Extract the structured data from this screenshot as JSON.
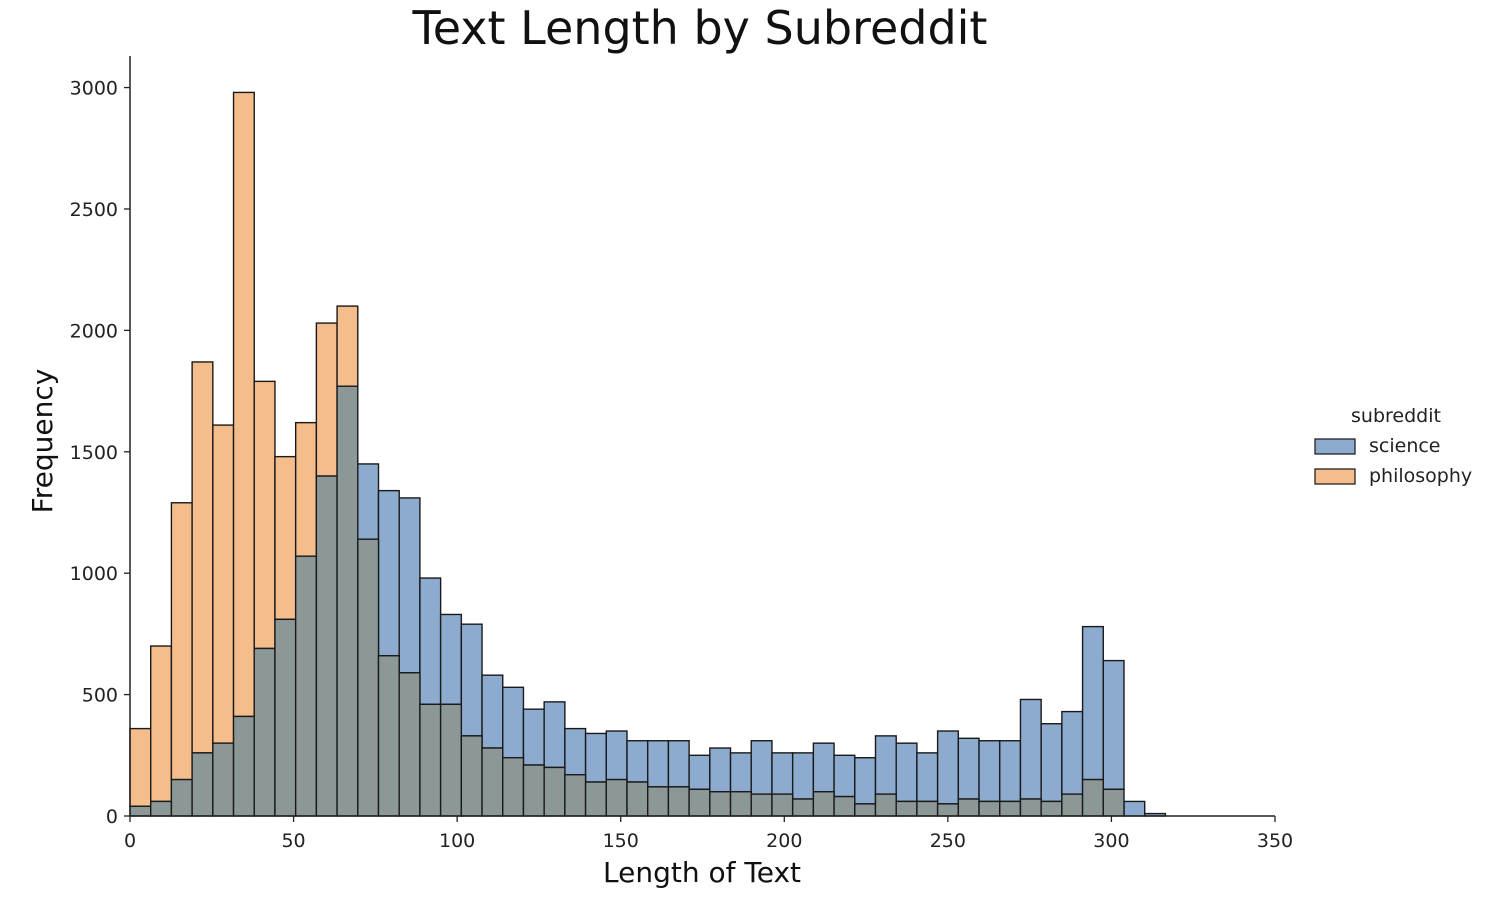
{
  "chart_data": {
    "type": "bar",
    "title": "Text Length by Subreddit",
    "xlabel": "Length of Text",
    "ylabel": "Frequency",
    "xlim": [
      0,
      350
    ],
    "ylim": [
      0,
      3130
    ],
    "xticks": [
      0,
      50,
      100,
      150,
      200,
      250,
      300,
      350
    ],
    "yticks": [
      0,
      500,
      1000,
      1500,
      2000,
      2500,
      3000
    ],
    "bin_width": 6.33,
    "bin_start": 0,
    "legend": {
      "title": "subreddit",
      "position": "right"
    },
    "series": [
      {
        "name": "science",
        "color": "#8dabcf",
        "values": [
          40,
          60,
          150,
          260,
          300,
          410,
          690,
          810,
          1070,
          1400,
          1770,
          1450,
          1340,
          1310,
          980,
          830,
          790,
          580,
          530,
          440,
          470,
          360,
          340,
          350,
          310,
          310,
          310,
          250,
          280,
          260,
          310,
          260,
          260,
          300,
          250,
          240,
          330,
          300,
          260,
          350,
          320,
          310,
          310,
          480,
          380,
          430,
          780,
          640,
          60,
          10,
          0
        ]
      },
      {
        "name": "philosophy",
        "color": "#f5bd8b",
        "values": [
          360,
          700,
          1290,
          1870,
          1610,
          2980,
          1790,
          1480,
          1620,
          2030,
          2100,
          1140,
          660,
          590,
          460,
          460,
          330,
          280,
          240,
          210,
          200,
          170,
          140,
          150,
          140,
          120,
          120,
          110,
          100,
          100,
          90,
          90,
          70,
          100,
          80,
          50,
          90,
          60,
          60,
          50,
          70,
          60,
          60,
          70,
          60,
          90,
          150,
          110,
          0,
          0,
          0
        ]
      }
    ]
  }
}
